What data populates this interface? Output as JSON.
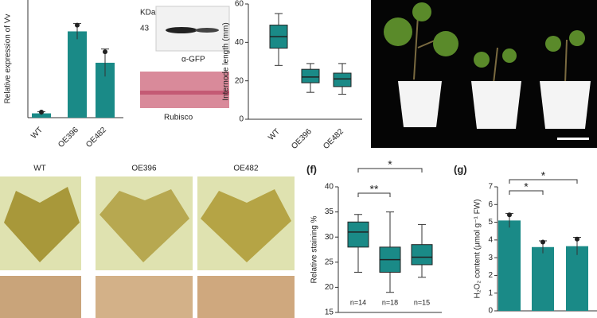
{
  "chart_data": [
    {
      "type": "bar",
      "y_label": "Relative expression of Vv",
      "categories": [
        "WT",
        "OE396",
        "OE482"
      ],
      "values": [
        1.1,
        22,
        14
      ],
      "errors": [
        0.4,
        2,
        3.5
      ],
      "ylim": [
        0,
        30
      ],
      "color": "#1a8a87"
    },
    {
      "type": "box",
      "y_label": "Internode length (mm)",
      "categories": [
        "WT",
        "OE396",
        "OE482"
      ],
      "min": [
        28,
        14,
        13
      ],
      "q1": [
        37,
        19,
        17
      ],
      "median": [
        43,
        22,
        21
      ],
      "q3": [
        49,
        26,
        24
      ],
      "max": [
        55,
        29,
        29
      ],
      "ylim": [
        0,
        60
      ],
      "yticks": [
        0,
        20,
        40,
        60
      ],
      "color": "#1a8a87"
    },
    {
      "type": "box",
      "panel_label": "(f)",
      "y_label": "Relative staining %",
      "min": [
        23,
        19,
        22
      ],
      "q1": [
        28,
        23,
        24.5
      ],
      "median": [
        31,
        25.5,
        26
      ],
      "q3": [
        33,
        28,
        28.5
      ],
      "max": [
        34.5,
        35,
        32.5
      ],
      "ylim": [
        15,
        40
      ],
      "yticks": [
        15,
        20,
        25,
        30,
        35,
        40
      ],
      "annotations": [
        "n=14",
        "n=18",
        "n=15"
      ],
      "significance": [
        "**",
        "*"
      ],
      "color": "#1a8a87"
    },
    {
      "type": "bar",
      "panel_label": "(g)",
      "y_label": "H₂O₂ content (μmol g⁻¹ FW)",
      "values": [
        5.1,
        3.6,
        3.65
      ],
      "errors": [
        0.4,
        0.35,
        0.5
      ],
      "ylim": [
        0,
        7
      ],
      "yticks": [
        0,
        1,
        2,
        3,
        4,
        5,
        6,
        7
      ],
      "significance": [
        "*",
        "*"
      ],
      "color": "#1a8a87"
    }
  ],
  "blot": {
    "units": "KDa",
    "marker": "43",
    "antibody": "α-GFP",
    "loading": "Rubisco"
  },
  "leaves": {
    "labels": [
      "WT",
      "OE396",
      "OE482"
    ]
  }
}
